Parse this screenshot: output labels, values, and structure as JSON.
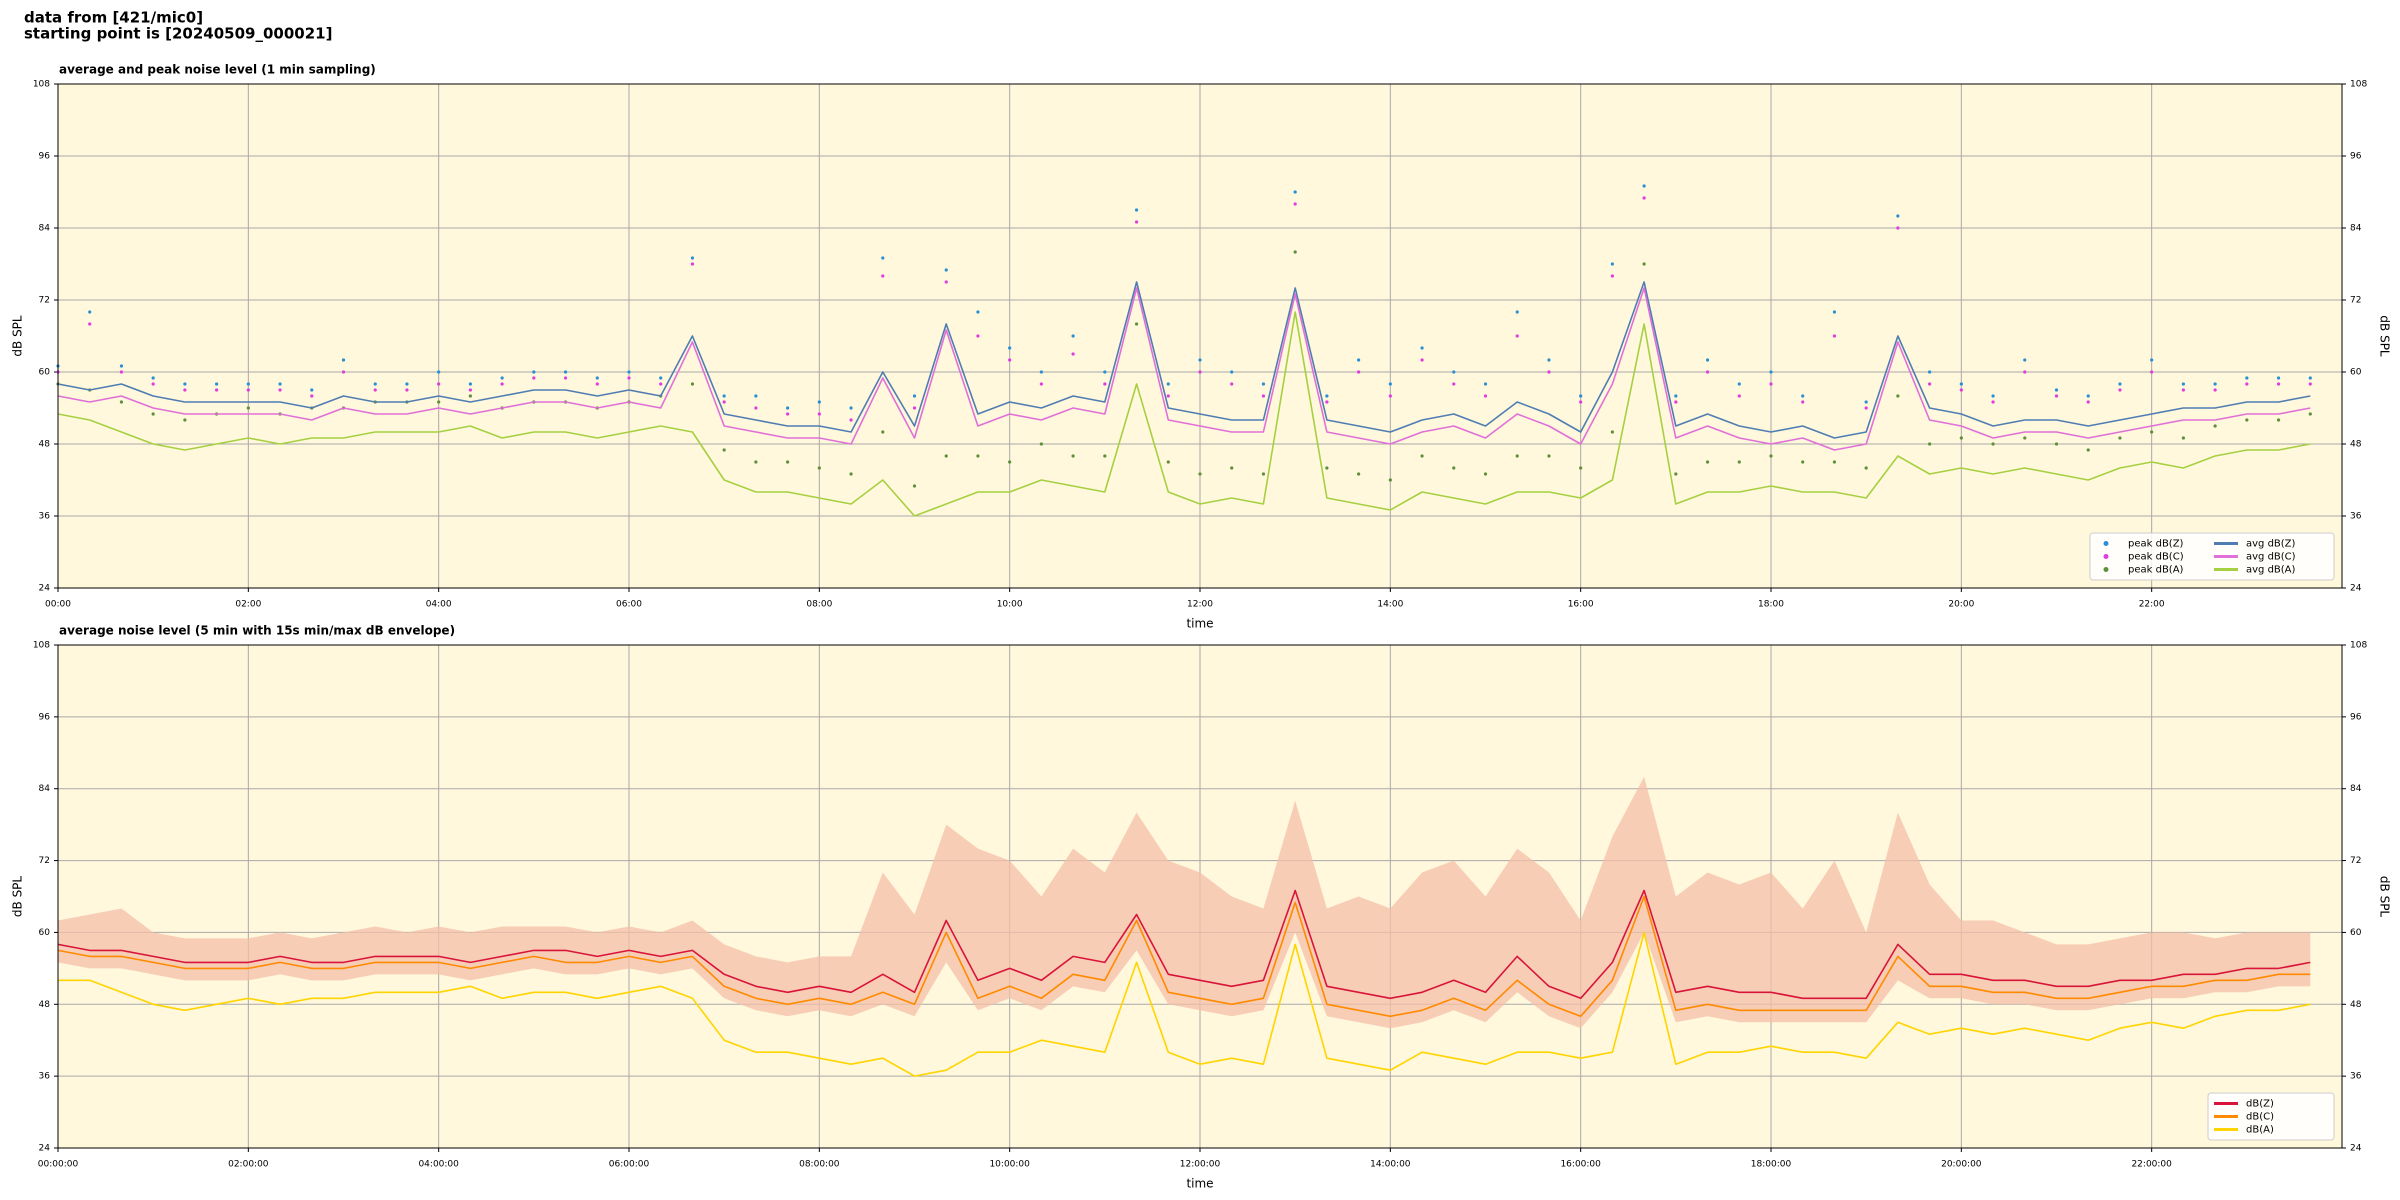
{
  "header": {
    "lines": [
      "data from [421/mic0]",
      "starting point is [20240509_000021]"
    ]
  },
  "chart_data": [
    {
      "type": "line",
      "title": "average and peak noise level (1 min sampling)",
      "xlabel": "time",
      "ylabel": "dB SPL",
      "y2label": "dB SPL",
      "x": [
        "00:00",
        "00:20",
        "00:40",
        "01:00",
        "01:20",
        "01:40",
        "02:00",
        "02:20",
        "02:40",
        "03:00",
        "03:20",
        "03:40",
        "04:00",
        "04:20",
        "04:40",
        "05:00",
        "05:20",
        "05:40",
        "06:00",
        "06:20",
        "06:40",
        "07:00",
        "07:20",
        "07:40",
        "08:00",
        "08:20",
        "08:40",
        "09:00",
        "09:20",
        "09:40",
        "10:00",
        "10:20",
        "10:40",
        "11:00",
        "11:20",
        "11:40",
        "12:00",
        "12:20",
        "12:40",
        "13:00",
        "13:20",
        "13:40",
        "14:00",
        "14:20",
        "14:40",
        "15:00",
        "15:20",
        "15:40",
        "16:00",
        "16:20",
        "16:40",
        "17:00",
        "17:20",
        "17:40",
        "18:00",
        "18:20",
        "18:40",
        "19:00",
        "19:20",
        "19:40",
        "20:00",
        "20:20",
        "20:40",
        "21:00",
        "21:20",
        "21:40",
        "22:00",
        "22:20",
        "22:40",
        "23:00",
        "23:20",
        "23:40"
      ],
      "xlim": [
        "00:00",
        "24:00"
      ],
      "xticks": [
        "00:00",
        "02:00",
        "04:00",
        "06:00",
        "08:00",
        "10:00",
        "12:00",
        "14:00",
        "16:00",
        "18:00",
        "20:00",
        "22:00"
      ],
      "ylim": [
        24,
        108
      ],
      "yticks": [
        24,
        36,
        48,
        60,
        72,
        84,
        96,
        108
      ],
      "y2lim": [
        24,
        108
      ],
      "y2ticks": [
        24,
        36,
        48,
        60,
        72,
        84,
        96,
        108
      ],
      "grid": true,
      "legend": "lower right",
      "legend_ncol": 2,
      "series": [
        {
          "name": "peak dB(Z)",
          "color": "#2a8fd6",
          "marker": "dot",
          "values": [
            61,
            70,
            61,
            59,
            58,
            58,
            58,
            58,
            57,
            62,
            58,
            58,
            60,
            58,
            59,
            60,
            60,
            59,
            60,
            59,
            79,
            56,
            56,
            54,
            55,
            54,
            79,
            56,
            77,
            70,
            64,
            60,
            66,
            60,
            87,
            58,
            62,
            60,
            58,
            90,
            56,
            62,
            58,
            64,
            60,
            58,
            70,
            62,
            56,
            78,
            91,
            56,
            62,
            58,
            60,
            56,
            70,
            55,
            86,
            60,
            58,
            56,
            62,
            57,
            56,
            58,
            62,
            58,
            58,
            59,
            59,
            59
          ]
        },
        {
          "name": "peak dB(C)",
          "color": "#e03ce0",
          "marker": "dot",
          "values": [
            60,
            68,
            60,
            58,
            57,
            57,
            57,
            57,
            56,
            60,
            57,
            57,
            58,
            57,
            58,
            59,
            59,
            58,
            59,
            58,
            78,
            55,
            54,
            53,
            53,
            52,
            76,
            54,
            75,
            66,
            62,
            58,
            63,
            58,
            85,
            56,
            60,
            58,
            56,
            88,
            55,
            60,
            56,
            62,
            58,
            56,
            66,
            60,
            55,
            76,
            89,
            55,
            60,
            56,
            58,
            55,
            66,
            54,
            84,
            58,
            57,
            55,
            60,
            56,
            55,
            57,
            60,
            57,
            57,
            58,
            58,
            58
          ]
        },
        {
          "name": "peak dB(A)",
          "color": "#5f8f3a",
          "marker": "dot",
          "values": [
            58,
            57,
            55,
            53,
            52,
            53,
            54,
            53,
            54,
            54,
            55,
            55,
            55,
            56,
            54,
            55,
            55,
            54,
            55,
            56,
            58,
            47,
            45,
            45,
            44,
            43,
            50,
            41,
            46,
            46,
            45,
            48,
            46,
            46,
            68,
            45,
            43,
            44,
            43,
            80,
            44,
            43,
            42,
            46,
            44,
            43,
            46,
            46,
            44,
            50,
            78,
            43,
            45,
            45,
            46,
            45,
            45,
            44,
            56,
            48,
            49,
            48,
            49,
            48,
            47,
            49,
            50,
            49,
            51,
            52,
            52,
            53
          ]
        },
        {
          "name": "avg dB(Z)",
          "color": "#4f7db3",
          "marker": "line",
          "values": [
            58,
            57,
            58,
            56,
            55,
            55,
            55,
            55,
            54,
            56,
            55,
            55,
            56,
            55,
            56,
            57,
            57,
            56,
            57,
            56,
            66,
            53,
            52,
            51,
            51,
            50,
            60,
            51,
            68,
            53,
            55,
            54,
            56,
            55,
            75,
            54,
            53,
            52,
            52,
            74,
            52,
            51,
            50,
            52,
            53,
            51,
            55,
            53,
            50,
            60,
            75,
            51,
            53,
            51,
            50,
            51,
            49,
            50,
            66,
            54,
            53,
            51,
            52,
            52,
            51,
            52,
            53,
            54,
            54,
            55,
            55,
            56
          ]
        },
        {
          "name": "avg dB(C)",
          "color": "#e070d8",
          "marker": "line",
          "values": [
            56,
            55,
            56,
            54,
            53,
            53,
            53,
            53,
            52,
            54,
            53,
            53,
            54,
            53,
            54,
            55,
            55,
            54,
            55,
            54,
            65,
            51,
            50,
            49,
            49,
            48,
            59,
            49,
            67,
            51,
            53,
            52,
            54,
            53,
            74,
            52,
            51,
            50,
            50,
            73,
            50,
            49,
            48,
            50,
            51,
            49,
            53,
            51,
            48,
            58,
            74,
            49,
            51,
            49,
            48,
            49,
            47,
            48,
            65,
            52,
            51,
            49,
            50,
            50,
            49,
            50,
            51,
            52,
            52,
            53,
            53,
            54
          ]
        },
        {
          "name": "avg dB(A)",
          "color": "#a6d042",
          "marker": "line",
          "values": [
            53,
            52,
            50,
            48,
            47,
            48,
            49,
            48,
            49,
            49,
            50,
            50,
            50,
            51,
            49,
            50,
            50,
            49,
            50,
            51,
            50,
            42,
            40,
            40,
            39,
            38,
            42,
            36,
            38,
            40,
            40,
            42,
            41,
            40,
            58,
            40,
            38,
            39,
            38,
            70,
            39,
            38,
            37,
            40,
            39,
            38,
            40,
            40,
            39,
            42,
            68,
            38,
            40,
            40,
            41,
            40,
            40,
            39,
            46,
            43,
            44,
            43,
            44,
            43,
            42,
            44,
            45,
            44,
            46,
            47,
            47,
            48
          ]
        }
      ]
    },
    {
      "type": "line",
      "title": "average noise level (5 min with 15s min/max dB envelope)",
      "xlabel": "time",
      "ylabel": "dB SPL",
      "y2label": "dB SPL",
      "x": [
        "00:00:00",
        "00:20:00",
        "00:40:00",
        "01:00:00",
        "01:20:00",
        "01:40:00",
        "02:00:00",
        "02:20:00",
        "02:40:00",
        "03:00:00",
        "03:20:00",
        "03:40:00",
        "04:00:00",
        "04:20:00",
        "04:40:00",
        "05:00:00",
        "05:20:00",
        "05:40:00",
        "06:00:00",
        "06:20:00",
        "06:40:00",
        "07:00:00",
        "07:20:00",
        "07:40:00",
        "08:00:00",
        "08:20:00",
        "08:40:00",
        "09:00:00",
        "09:20:00",
        "09:40:00",
        "10:00:00",
        "10:20:00",
        "10:40:00",
        "11:00:00",
        "11:20:00",
        "11:40:00",
        "12:00:00",
        "12:20:00",
        "12:40:00",
        "13:00:00",
        "13:20:00",
        "13:40:00",
        "14:00:00",
        "14:20:00",
        "14:40:00",
        "15:00:00",
        "15:20:00",
        "15:40:00",
        "16:00:00",
        "16:20:00",
        "16:40:00",
        "17:00:00",
        "17:20:00",
        "17:40:00",
        "18:00:00",
        "18:20:00",
        "18:40:00",
        "19:00:00",
        "19:20:00",
        "19:40:00",
        "20:00:00",
        "20:20:00",
        "20:40:00",
        "21:00:00",
        "21:20:00",
        "21:40:00",
        "22:00:00",
        "22:20:00",
        "22:40:00",
        "23:00:00",
        "23:20:00",
        "23:40:00"
      ],
      "xlim": [
        "00:00:00",
        "24:00:00"
      ],
      "xticks": [
        "00:00:00",
        "02:00:00",
        "04:00:00",
        "06:00:00",
        "08:00:00",
        "10:00:00",
        "12:00:00",
        "14:00:00",
        "16:00:00",
        "18:00:00",
        "20:00:00",
        "22:00:00"
      ],
      "ylim": [
        24,
        108
      ],
      "yticks": [
        24,
        36,
        48,
        60,
        72,
        84,
        96,
        108
      ],
      "y2lim": [
        24,
        108
      ],
      "y2ticks": [
        24,
        36,
        48,
        60,
        72,
        84,
        96,
        108
      ],
      "grid": true,
      "legend": "lower right",
      "legend_ncol": 1,
      "envelope": {
        "color": "#f4bfa8",
        "max": [
          62,
          63,
          64,
          60,
          59,
          59,
          59,
          60,
          59,
          60,
          61,
          60,
          61,
          60,
          61,
          61,
          61,
          60,
          61,
          60,
          62,
          58,
          56,
          55,
          56,
          56,
          70,
          63,
          78,
          74,
          72,
          66,
          74,
          70,
          80,
          72,
          70,
          66,
          64,
          82,
          64,
          66,
          64,
          70,
          72,
          66,
          74,
          70,
          62,
          76,
          86,
          66,
          70,
          68,
          70,
          64,
          72,
          60,
          80,
          68,
          62,
          62,
          60,
          58,
          58,
          59,
          60,
          60,
          59,
          60,
          60,
          60
        ],
        "min": [
          55,
          54,
          54,
          53,
          52,
          52,
          52,
          53,
          52,
          52,
          53,
          53,
          53,
          52,
          53,
          54,
          53,
          53,
          54,
          53,
          54,
          49,
          47,
          46,
          47,
          46,
          48,
          46,
          55,
          47,
          49,
          47,
          51,
          50,
          57,
          48,
          47,
          46,
          47,
          60,
          46,
          45,
          44,
          45,
          47,
          45,
          50,
          46,
          44,
          50,
          60,
          45,
          46,
          45,
          45,
          45,
          45,
          45,
          52,
          49,
          49,
          48,
          48,
          47,
          47,
          48,
          49,
          49,
          50,
          50,
          51,
          51
        ]
      },
      "series": [
        {
          "name": "dB(Z)",
          "color": "#d9143a",
          "marker": "line",
          "values": [
            58,
            57,
            57,
            56,
            55,
            55,
            55,
            56,
            55,
            55,
            56,
            56,
            56,
            55,
            56,
            57,
            57,
            56,
            57,
            56,
            57,
            53,
            51,
            50,
            51,
            50,
            53,
            50,
            62,
            52,
            54,
            52,
            56,
            55,
            63,
            53,
            52,
            51,
            52,
            67,
            51,
            50,
            49,
            50,
            52,
            50,
            56,
            51,
            49,
            55,
            67,
            50,
            51,
            50,
            50,
            49,
            49,
            49,
            58,
            53,
            53,
            52,
            52,
            51,
            51,
            52,
            52,
            53,
            53,
            54,
            54,
            55
          ]
        },
        {
          "name": "dB(C)",
          "color": "#ff8a00",
          "marker": "line",
          "values": [
            57,
            56,
            56,
            55,
            54,
            54,
            54,
            55,
            54,
            54,
            55,
            55,
            55,
            54,
            55,
            56,
            55,
            55,
            56,
            55,
            56,
            51,
            49,
            48,
            49,
            48,
            50,
            48,
            60,
            49,
            51,
            49,
            53,
            52,
            62,
            50,
            49,
            48,
            49,
            65,
            48,
            47,
            46,
            47,
            49,
            47,
            52,
            48,
            46,
            52,
            66,
            47,
            48,
            47,
            47,
            47,
            47,
            47,
            56,
            51,
            51,
            50,
            50,
            49,
            49,
            50,
            51,
            51,
            52,
            52,
            53,
            53
          ]
        },
        {
          "name": "dB(A)",
          "color": "#ffd400",
          "marker": "line",
          "values": [
            52,
            52,
            50,
            48,
            47,
            48,
            49,
            48,
            49,
            49,
            50,
            50,
            50,
            51,
            49,
            50,
            50,
            49,
            50,
            51,
            49,
            42,
            40,
            40,
            39,
            38,
            39,
            36,
            37,
            40,
            40,
            42,
            41,
            40,
            55,
            40,
            38,
            39,
            38,
            58,
            39,
            38,
            37,
            40,
            39,
            38,
            40,
            40,
            39,
            40,
            60,
            38,
            40,
            40,
            41,
            40,
            40,
            39,
            45,
            43,
            44,
            43,
            44,
            43,
            42,
            44,
            45,
            44,
            46,
            47,
            47,
            48
          ]
        }
      ]
    }
  ]
}
